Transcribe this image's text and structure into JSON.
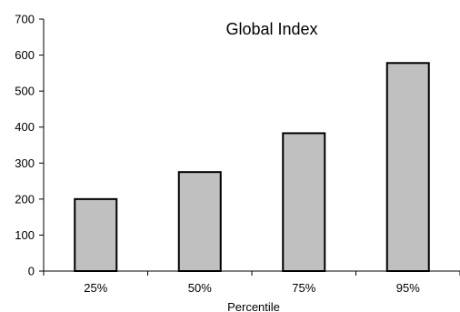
{
  "chart_data": {
    "type": "bar",
    "title": "Global Index",
    "xlabel": "Percentile",
    "ylabel": "",
    "categories": [
      "25%",
      "50%",
      "75%",
      "95%"
    ],
    "values": [
      200,
      275,
      383,
      578
    ],
    "ylim": [
      0,
      700
    ],
    "yticks": [
      0,
      100,
      200,
      300,
      400,
      500,
      600,
      700
    ],
    "grid": false,
    "legend": "none",
    "colors": {
      "bar_fill": "#c0c0c0",
      "bar_stroke": "#000000",
      "axis": "#000000"
    }
  }
}
